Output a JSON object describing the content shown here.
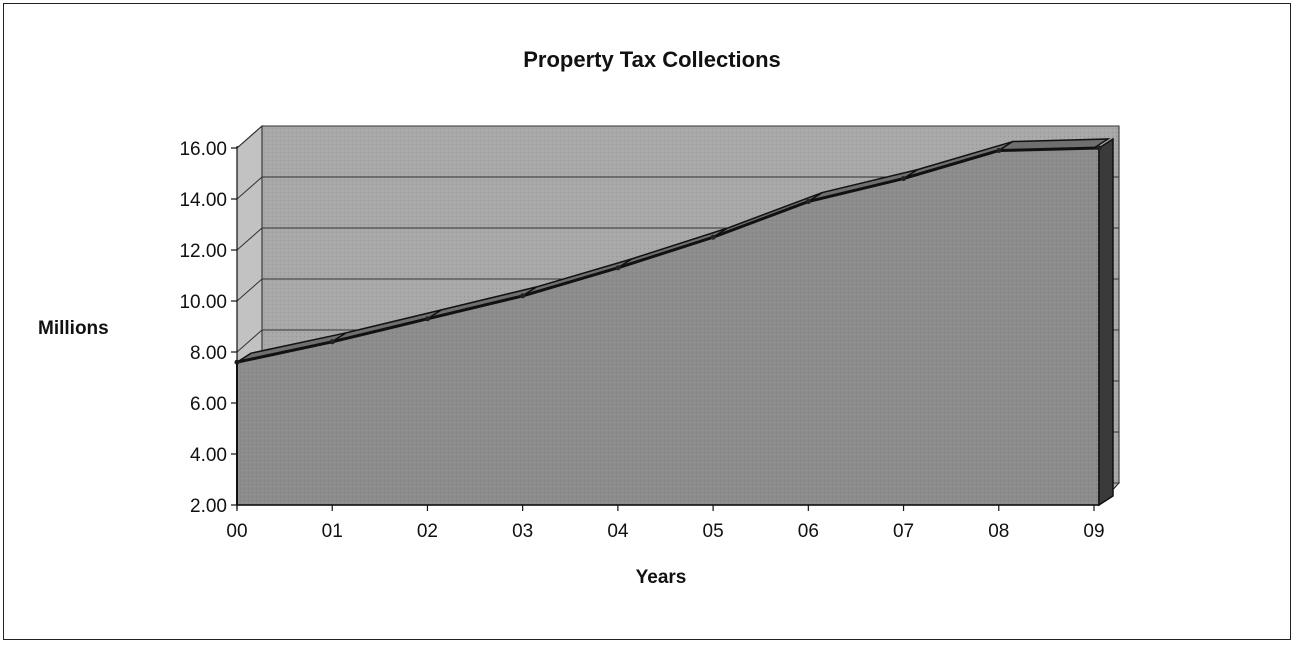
{
  "chart_data": {
    "type": "area",
    "title": "Property Tax Collections",
    "xlabel": "Years",
    "ylabel": "Millions",
    "categories": [
      "00",
      "01",
      "02",
      "03",
      "04",
      "05",
      "06",
      "07",
      "08",
      "09"
    ],
    "y_ticks": [
      "2.00",
      "4.00",
      "6.00",
      "8.00",
      "10.00",
      "12.00",
      "14.00",
      "16.00"
    ],
    "ylim": [
      2,
      16
    ],
    "series": [
      {
        "values": [
          7.6,
          8.4,
          9.3,
          10.2,
          11.3,
          12.5,
          13.9,
          14.8,
          15.9,
          16.0
        ]
      }
    ],
    "style": "3d",
    "grid": true,
    "colors": {
      "area_front": "#8c8c8c",
      "area_top": "#6f6f6f",
      "area_side": "#3a3a3a",
      "back_wall": "#a8a8a8",
      "side_wall": "#c2c2c2",
      "floor": "#b0b0b0",
      "outline": "#111111"
    }
  }
}
